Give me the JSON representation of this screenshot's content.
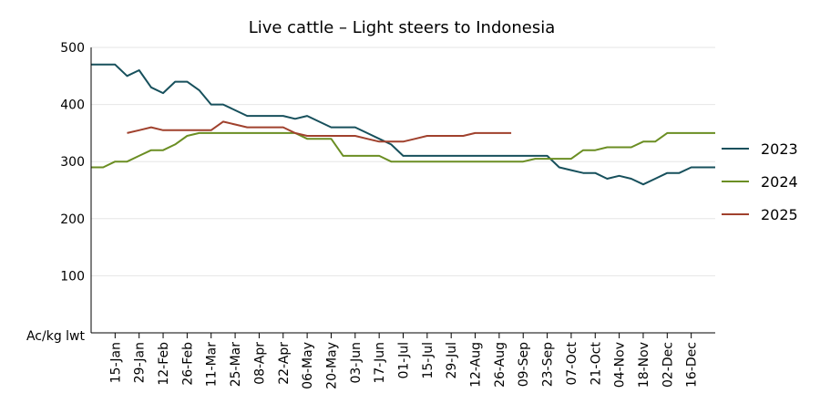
{
  "chart_data": {
    "type": "line",
    "title": "Live cattle – Light steers to Indonesia",
    "ylabel": "Ac/kg lwt",
    "xlabel": "",
    "ylim": [
      0,
      500
    ],
    "yticks": [
      100,
      200,
      300,
      400,
      500
    ],
    "grid": true,
    "legend_position": "right",
    "x_tick_labels": [
      "15-Jan",
      "29-Jan",
      "12-Feb",
      "26-Feb",
      "11-Mar",
      "25-Mar",
      "08-Apr",
      "22-Apr",
      "06-May",
      "20-May",
      "03-Jun",
      "17-Jun",
      "01-Jul",
      "15-Jul",
      "29-Jul",
      "12-Aug",
      "26-Aug",
      "09-Sep",
      "23-Sep",
      "07-Oct",
      "21-Oct",
      "04-Nov",
      "18-Nov",
      "02-Dec",
      "16-Dec"
    ],
    "x": [
      "01-Jan",
      "08-Jan",
      "15-Jan",
      "22-Jan",
      "29-Jan",
      "05-Feb",
      "12-Feb",
      "19-Feb",
      "26-Feb",
      "04-Mar",
      "11-Mar",
      "18-Mar",
      "25-Mar",
      "01-Apr",
      "08-Apr",
      "15-Apr",
      "22-Apr",
      "29-Apr",
      "06-May",
      "13-May",
      "20-May",
      "27-May",
      "03-Jun",
      "10-Jun",
      "17-Jun",
      "24-Jun",
      "01-Jul",
      "08-Jul",
      "15-Jul",
      "22-Jul",
      "29-Jul",
      "05-Aug",
      "12-Aug",
      "19-Aug",
      "26-Aug",
      "02-Sep",
      "09-Sep",
      "16-Sep",
      "23-Sep",
      "30-Sep",
      "07-Oct",
      "14-Oct",
      "21-Oct",
      "28-Oct",
      "04-Nov",
      "11-Nov",
      "18-Nov",
      "25-Nov",
      "02-Dec",
      "09-Dec",
      "16-Dec",
      "23-Dec",
      "30-Dec"
    ],
    "series": [
      {
        "name": "2023",
        "color": "#17505c",
        "values": [
          470,
          470,
          470,
          450,
          460,
          430,
          420,
          440,
          440,
          425,
          400,
          400,
          390,
          380,
          380,
          380,
          380,
          375,
          380,
          370,
          360,
          360,
          360,
          350,
          340,
          330,
          310,
          310,
          310,
          310,
          310,
          310,
          310,
          310,
          310,
          310,
          310,
          310,
          310,
          290,
          285,
          280,
          280,
          270,
          275,
          270,
          260,
          270,
          280,
          280,
          290,
          290,
          290
        ]
      },
      {
        "name": "2024",
        "color": "#6b8e23",
        "values": [
          290,
          290,
          300,
          300,
          310,
          320,
          320,
          330,
          345,
          350,
          350,
          350,
          350,
          350,
          350,
          350,
          350,
          350,
          340,
          340,
          340,
          310,
          310,
          310,
          310,
          300,
          300,
          300,
          300,
          300,
          300,
          300,
          300,
          300,
          300,
          300,
          300,
          305,
          305,
          305,
          305,
          320,
          320,
          325,
          325,
          325,
          335,
          335,
          350,
          350,
          350,
          350,
          350
        ]
      },
      {
        "name": "2025",
        "color": "#a0412d",
        "values": [
          null,
          null,
          null,
          350,
          355,
          360,
          355,
          355,
          355,
          355,
          355,
          370,
          365,
          360,
          360,
          360,
          360,
          350,
          345,
          345,
          345,
          345,
          345,
          340,
          335,
          335,
          335,
          340,
          345,
          345,
          345,
          345,
          350,
          350,
          350,
          350,
          null,
          null,
          null,
          null,
          null,
          null,
          null,
          null,
          null,
          null,
          null,
          null,
          null,
          null,
          null,
          null,
          null
        ]
      }
    ]
  }
}
